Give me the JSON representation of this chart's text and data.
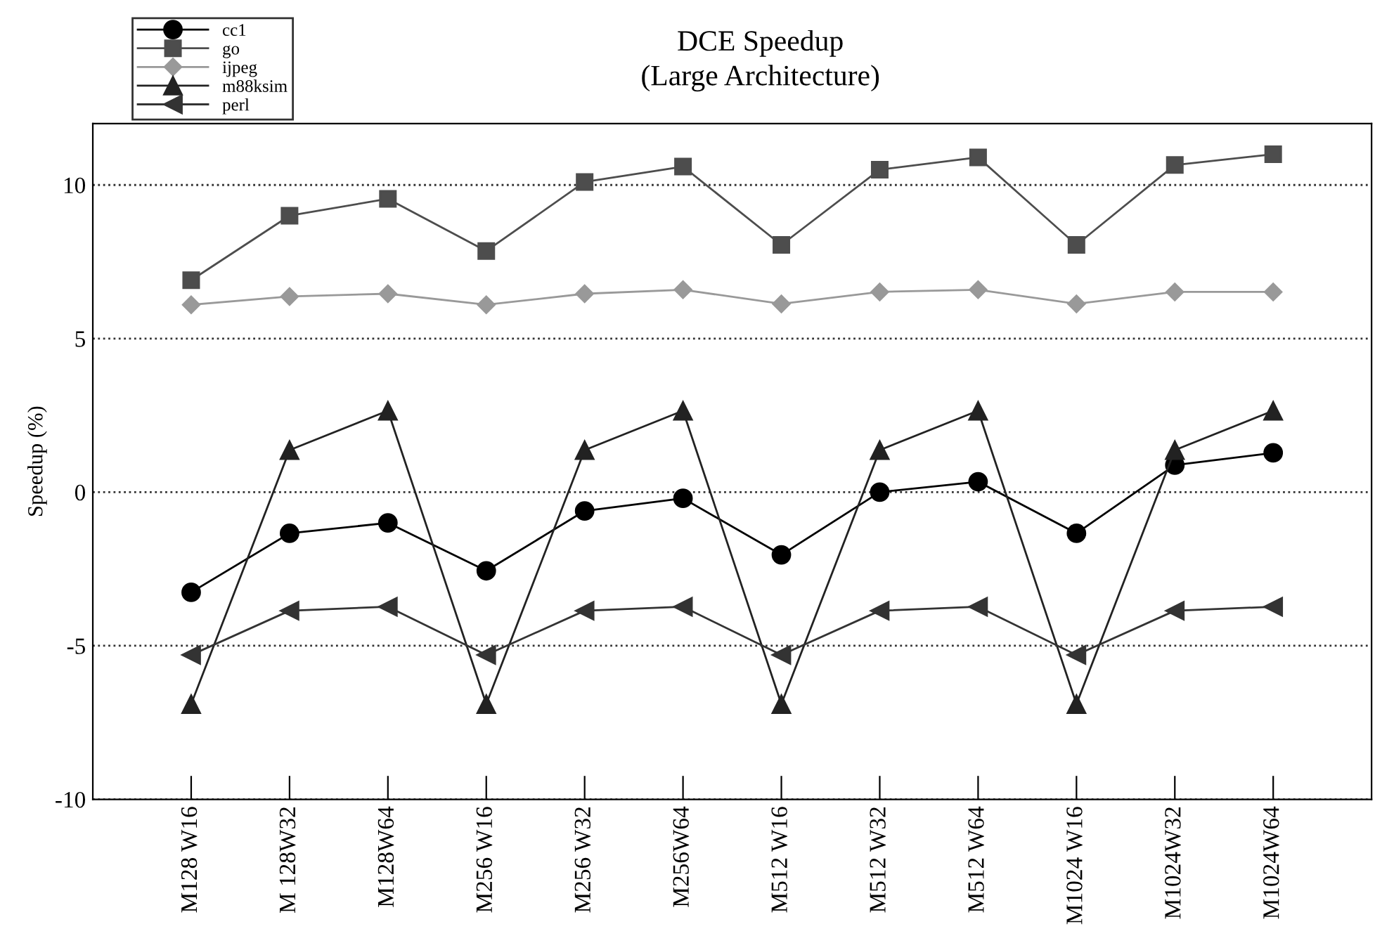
{
  "chart_data": {
    "type": "line",
    "title": "DCE Speedup\n(Large Architecture)",
    "ylabel": "Speedup (%)",
    "categories": [
      "M128 W16",
      "M 128W32",
      "M128W64",
      "M256 W16",
      "M256 W32",
      "M256W64",
      "M512 W16",
      "M512 W32",
      "M512 W64",
      "M1024 W16",
      "M1024W32",
      "M1024W64"
    ],
    "series": [
      {
        "name": "cc1",
        "color": "#000000",
        "marker": "circle",
        "values": [
          -3.26,
          -1.34,
          -1.0,
          -2.56,
          -0.61,
          -0.2,
          -2.04,
          0,
          0.34,
          -1.34,
          0.88,
          1.28
        ]
      },
      {
        "name": "go",
        "color": "#4d4d4d",
        "marker": "square",
        "values": [
          6.9,
          9.0,
          9.55,
          7.85,
          10.1,
          10.6,
          8.05,
          10.5,
          10.9,
          8.05,
          10.65,
          11.0
        ]
      },
      {
        "name": "ijpeg",
        "color": "#999999",
        "marker": "diamond",
        "values": [
          6.1,
          6.37,
          6.46,
          6.1,
          6.46,
          6.59,
          6.13,
          6.52,
          6.59,
          6.13,
          6.52,
          6.52
        ]
      },
      {
        "name": "m88ksim",
        "color": "#222222",
        "marker": "triangle",
        "values": [
          -6.9,
          1.37,
          2.65,
          -6.9,
          1.37,
          2.65,
          -6.9,
          1.37,
          2.65,
          -6.9,
          1.37,
          2.65
        ]
      },
      {
        "name": "perl",
        "color": "#333333",
        "marker": "triangle_left",
        "values": [
          -5.3,
          -3.86,
          -3.73,
          -5.3,
          -3.86,
          -3.73,
          -5.3,
          -3.86,
          -3.73,
          -5.3,
          -3.86,
          -3.73
        ]
      }
    ],
    "ylim": [
      -10,
      12
    ],
    "yticks": [
      -10,
      -5,
      0,
      5,
      10
    ],
    "grid": "y",
    "legend": "top left",
    "line_style": "solid"
  }
}
